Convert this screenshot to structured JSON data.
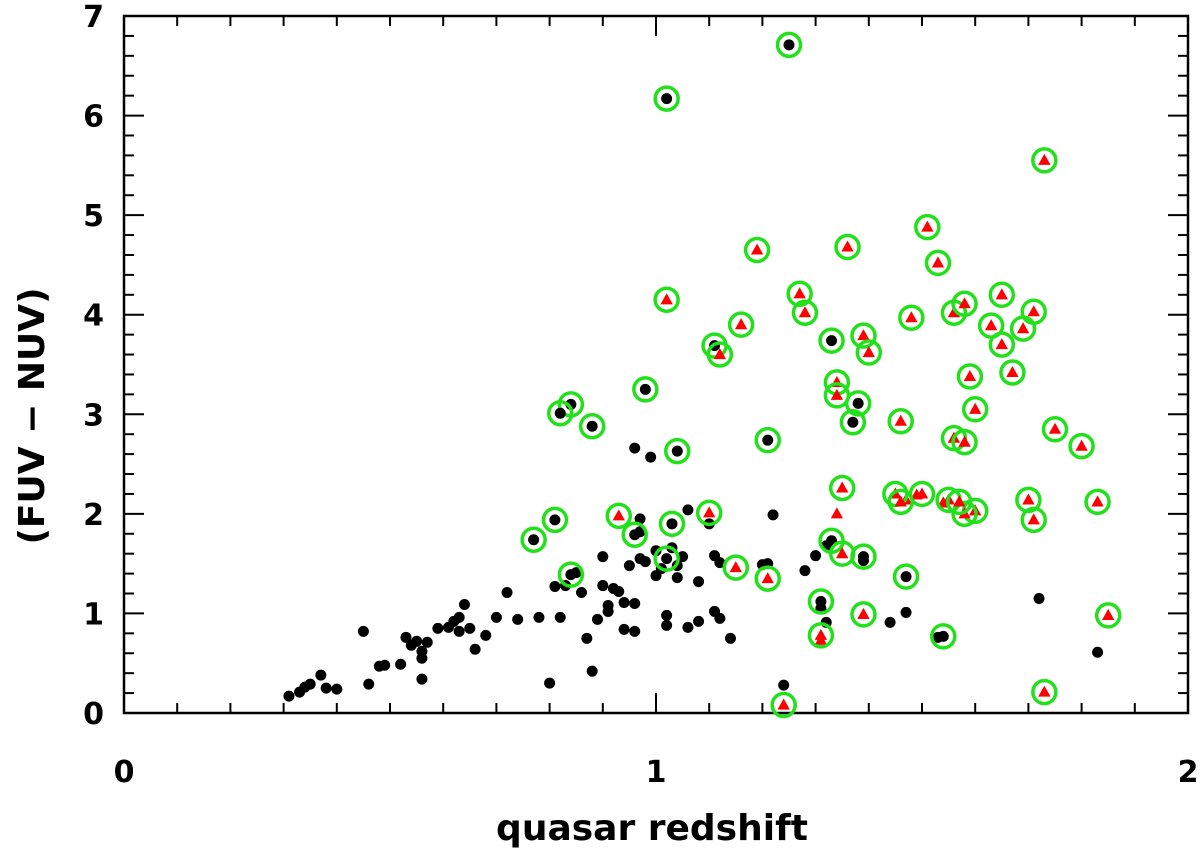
{
  "chart_data": {
    "type": "scatter",
    "title": "",
    "xlabel": "quasar redshift",
    "ylabel": "(FUV − NUV)",
    "xlim": [
      0,
      2
    ],
    "ylim": [
      0,
      7
    ],
    "xticks": [
      0,
      1,
      2
    ],
    "yticks": [
      0,
      1,
      2,
      3,
      4,
      5,
      6,
      7
    ],
    "x_minor_step": 0.1,
    "y_minor_step": 0.2,
    "grid": false,
    "legend": "none",
    "colors": {
      "dot": "#000000",
      "triangle": "#ff0000",
      "ring": "#22e01a",
      "axis": "#000000"
    },
    "series": [
      {
        "marker": "black-circle",
        "points": [
          [
            0.31,
            0.17
          ],
          [
            0.33,
            0.21
          ],
          [
            0.34,
            0.26
          ],
          [
            0.35,
            0.29
          ],
          [
            0.37,
            0.38
          ],
          [
            0.38,
            0.25
          ],
          [
            0.4,
            0.24
          ],
          [
            0.45,
            0.82
          ],
          [
            0.46,
            0.29
          ],
          [
            0.48,
            0.47
          ],
          [
            0.49,
            0.48
          ],
          [
            0.52,
            0.49
          ],
          [
            0.53,
            0.76
          ],
          [
            0.54,
            0.68
          ],
          [
            0.55,
            0.72
          ],
          [
            0.56,
            0.62
          ],
          [
            0.56,
            0.55
          ],
          [
            0.56,
            0.34
          ],
          [
            0.57,
            0.71
          ],
          [
            0.59,
            0.85
          ],
          [
            0.61,
            0.86
          ],
          [
            0.62,
            0.92
          ],
          [
            0.63,
            0.96
          ],
          [
            0.63,
            0.82
          ],
          [
            0.64,
            1.09
          ],
          [
            0.65,
            0.85
          ],
          [
            0.66,
            0.64
          ],
          [
            0.68,
            0.78
          ],
          [
            0.7,
            0.96
          ],
          [
            0.72,
            1.21
          ],
          [
            0.74,
            0.94
          ],
          [
            0.78,
            0.96
          ],
          [
            0.8,
            0.3
          ],
          [
            0.81,
            1.27
          ],
          [
            0.82,
            0.96
          ],
          [
            0.83,
            1.28
          ],
          [
            0.85,
            1.41
          ],
          [
            0.86,
            1.21
          ],
          [
            0.87,
            0.75
          ],
          [
            0.88,
            0.42
          ],
          [
            0.89,
            0.94
          ],
          [
            0.9,
            1.57
          ],
          [
            0.9,
            1.28
          ],
          [
            0.91,
            1.02
          ],
          [
            0.91,
            1.08
          ],
          [
            0.92,
            1.25
          ],
          [
            0.93,
            1.22
          ],
          [
            0.94,
            0.84
          ],
          [
            0.94,
            1.11
          ],
          [
            0.95,
            1.48
          ],
          [
            0.96,
            1.1
          ],
          [
            0.96,
            0.82
          ],
          [
            0.97,
            1.55
          ],
          [
            0.97,
            1.82
          ],
          [
            0.97,
            1.95
          ],
          [
            0.98,
            1.52
          ],
          [
            1.0,
            1.38
          ],
          [
            1.0,
            1.63
          ],
          [
            1.01,
            1.45
          ],
          [
            1.02,
            0.98
          ],
          [
            1.02,
            0.88
          ],
          [
            1.03,
            1.66
          ],
          [
            1.04,
            1.36
          ],
          [
            1.04,
            1.48
          ],
          [
            1.05,
            1.57
          ],
          [
            1.06,
            0.86
          ],
          [
            1.06,
            2.04
          ],
          [
            1.08,
            1.32
          ],
          [
            1.08,
            0.92
          ],
          [
            1.1,
            1.9
          ],
          [
            1.11,
            1.02
          ],
          [
            1.11,
            1.58
          ],
          [
            1.12,
            1.51
          ],
          [
            1.12,
            0.95
          ],
          [
            1.14,
            0.75
          ],
          [
            1.2,
            1.49
          ],
          [
            1.21,
            1.5
          ],
          [
            1.22,
            1.99
          ],
          [
            1.24,
            0.28
          ],
          [
            1.28,
            1.43
          ],
          [
            1.3,
            1.58
          ],
          [
            1.31,
            1.05
          ],
          [
            1.32,
            0.91
          ],
          [
            1.32,
            1.68
          ],
          [
            1.39,
            1.53
          ],
          [
            1.44,
            0.91
          ],
          [
            1.47,
            1.01
          ],
          [
            1.53,
            0.76
          ],
          [
            1.72,
            1.15
          ],
          [
            1.83,
            0.61
          ],
          [
            0.96,
            2.66
          ],
          [
            0.99,
            2.57
          ]
        ]
      },
      {
        "marker": "red-triangle",
        "points": [
          [
            1.31,
            0.73
          ],
          [
            1.34,
            2.0
          ],
          [
            1.47,
            2.14
          ],
          [
            1.54,
            2.11
          ],
          [
            1.49,
            2.19
          ]
        ]
      },
      {
        "marker": "black-circle-in-green-ring",
        "points": [
          [
            1.25,
            6.71
          ],
          [
            1.02,
            6.17
          ],
          [
            0.98,
            3.25
          ],
          [
            0.84,
            3.1
          ],
          [
            0.82,
            3.01
          ],
          [
            0.88,
            2.88
          ],
          [
            1.21,
            2.74
          ],
          [
            1.04,
            2.63
          ],
          [
            1.11,
            3.69
          ],
          [
            1.33,
            3.74
          ],
          [
            1.38,
            3.11
          ],
          [
            1.37,
            2.92
          ],
          [
            0.77,
            1.74
          ],
          [
            0.81,
            1.94
          ],
          [
            0.84,
            1.39
          ],
          [
            0.96,
            1.79
          ],
          [
            1.03,
            1.9
          ],
          [
            1.33,
            1.73
          ],
          [
            1.39,
            1.57
          ],
          [
            1.47,
            1.37
          ],
          [
            1.31,
            1.12
          ],
          [
            1.54,
            0.77
          ],
          [
            1.02,
            1.55
          ]
        ]
      },
      {
        "marker": "red-triangle-in-green-ring",
        "points": [
          [
            1.02,
            4.15
          ],
          [
            1.12,
            3.6
          ],
          [
            1.16,
            3.9
          ],
          [
            1.19,
            4.65
          ],
          [
            1.27,
            4.21
          ],
          [
            1.28,
            4.02
          ],
          [
            1.36,
            4.68
          ],
          [
            1.39,
            3.79
          ],
          [
            1.4,
            3.62
          ],
          [
            1.34,
            3.32
          ],
          [
            1.34,
            3.19
          ],
          [
            1.46,
            2.93
          ],
          [
            1.45,
            2.2
          ],
          [
            1.46,
            2.12
          ],
          [
            1.5,
            2.2
          ],
          [
            1.48,
            3.97
          ],
          [
            1.51,
            4.88
          ],
          [
            1.53,
            4.52
          ],
          [
            1.56,
            4.02
          ],
          [
            1.58,
            4.11
          ],
          [
            1.59,
            3.38
          ],
          [
            1.6,
            3.05
          ],
          [
            1.56,
            2.76
          ],
          [
            1.58,
            2.72
          ],
          [
            1.6,
            2.03
          ],
          [
            1.58,
            2.0
          ],
          [
            1.55,
            2.14
          ],
          [
            1.57,
            2.12
          ],
          [
            1.63,
            3.89
          ],
          [
            1.65,
            4.2
          ],
          [
            1.65,
            3.7
          ],
          [
            1.67,
            3.42
          ],
          [
            1.69,
            3.86
          ],
          [
            1.71,
            4.03
          ],
          [
            1.73,
            5.55
          ],
          [
            1.75,
            2.85
          ],
          [
            1.8,
            2.68
          ],
          [
            1.83,
            2.12
          ],
          [
            1.85,
            0.98
          ],
          [
            1.73,
            0.21
          ],
          [
            1.7,
            2.14
          ],
          [
            1.71,
            1.94
          ],
          [
            1.39,
            0.99
          ],
          [
            1.31,
            0.78
          ],
          [
            1.35,
            1.6
          ],
          [
            1.35,
            2.26
          ],
          [
            1.24,
            0.08
          ],
          [
            1.1,
            2.01
          ],
          [
            1.15,
            1.46
          ],
          [
            1.21,
            1.35
          ],
          [
            0.93,
            1.98
          ]
        ]
      }
    ]
  }
}
